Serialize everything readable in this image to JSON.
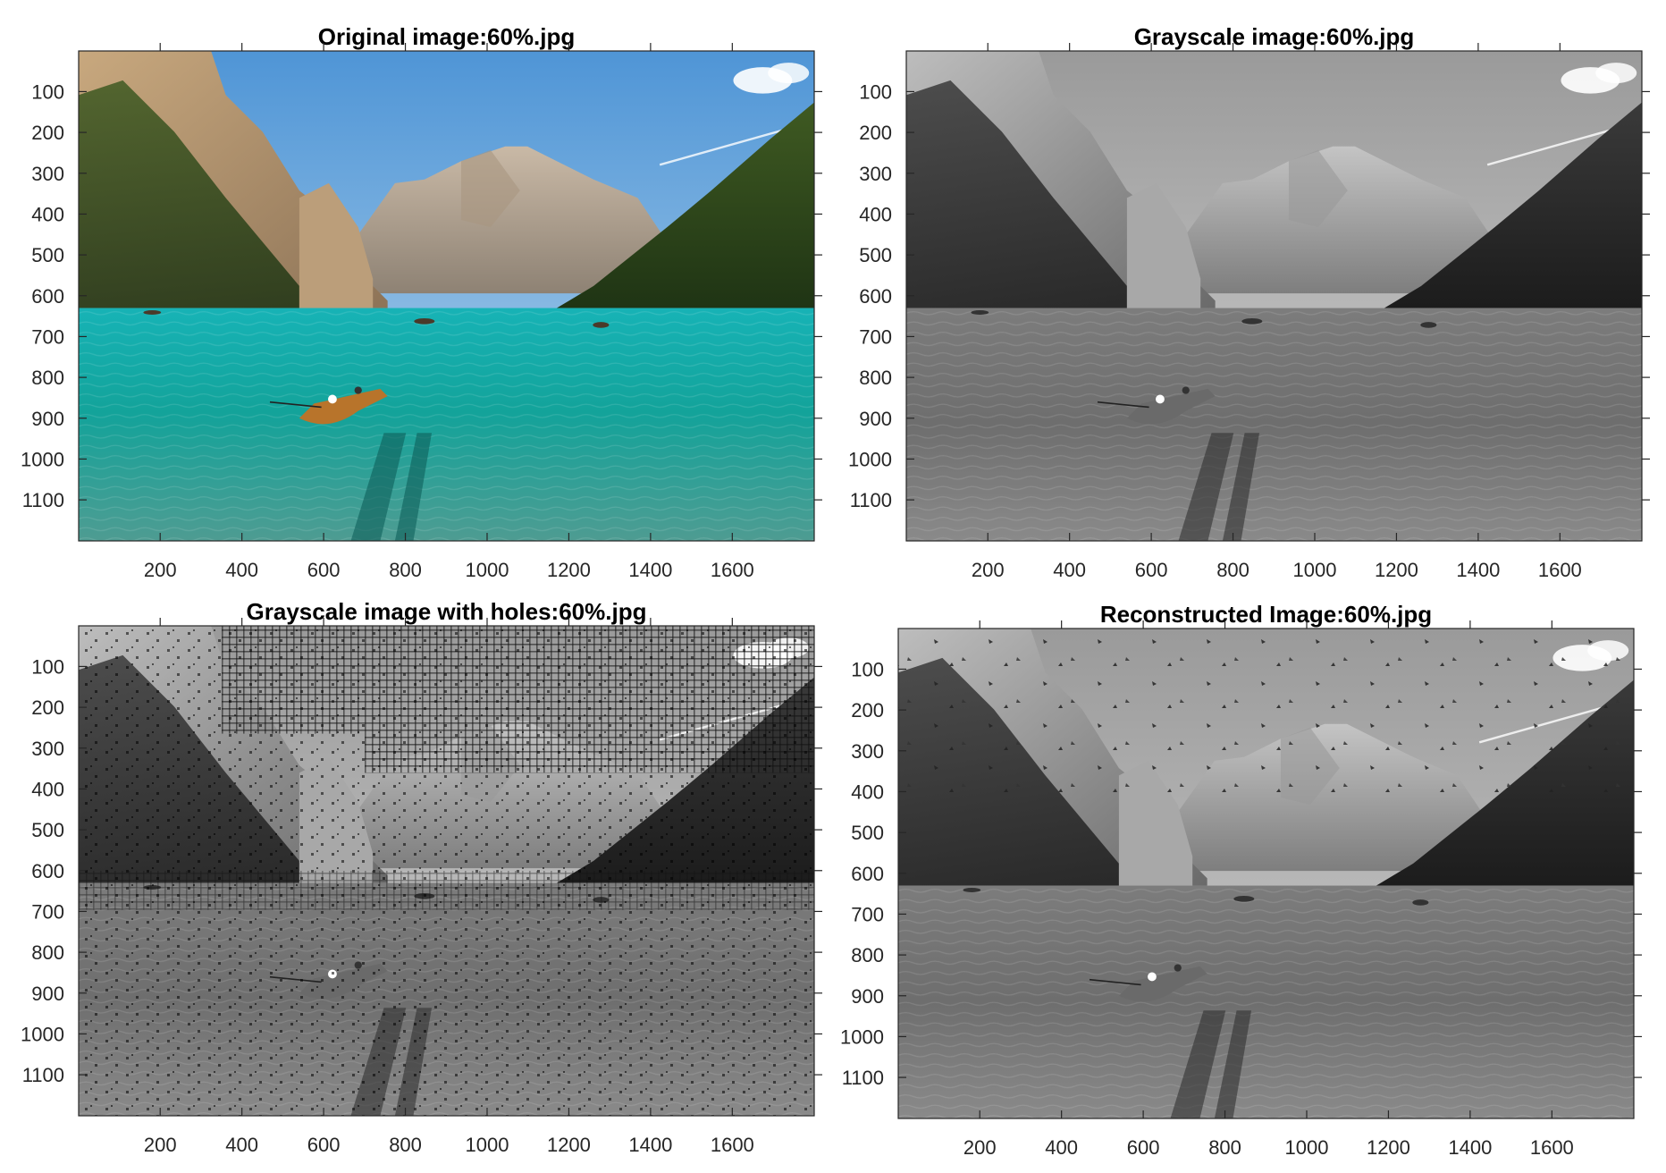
{
  "figure": {
    "panels": [
      {
        "id": "original",
        "title": "Original image:60%.jpg",
        "image_kind": "color",
        "xticks": [
          200,
          400,
          600,
          800,
          1000,
          1200,
          1400,
          1600
        ],
        "yticks": [
          100,
          200,
          300,
          400,
          500,
          600,
          700,
          800,
          900,
          1000,
          1100
        ],
        "xlim": [
          0.5,
          1800.5
        ],
        "ylim": [
          0.5,
          1200.5
        ]
      },
      {
        "id": "grayscale",
        "title": "Grayscale image:60%.jpg",
        "image_kind": "grayscale",
        "xticks": [
          200,
          400,
          600,
          800,
          1000,
          1200,
          1400,
          1600
        ],
        "yticks": [
          100,
          200,
          300,
          400,
          500,
          600,
          700,
          800,
          900,
          1000,
          1100
        ],
        "xlim": [
          0.5,
          1800.5
        ],
        "ylim": [
          0.5,
          1200.5
        ]
      },
      {
        "id": "holes",
        "title": "Grayscale image with holes:60%.jpg",
        "image_kind": "grayscale-with-holes",
        "xticks": [
          200,
          400,
          600,
          800,
          1000,
          1200,
          1400,
          1600
        ],
        "yticks": [
          100,
          200,
          300,
          400,
          500,
          600,
          700,
          800,
          900,
          1000,
          1100
        ],
        "xlim": [
          0.5,
          1800.5
        ],
        "ylim": [
          0.5,
          1200.5
        ]
      },
      {
        "id": "reconstructed",
        "title": "Reconstructed Image:60%.jpg",
        "image_kind": "grayscale-reconstructed",
        "xticks": [
          200,
          400,
          600,
          800,
          1000,
          1200,
          1400,
          1600
        ],
        "yticks": [
          100,
          200,
          300,
          400,
          500,
          600,
          700,
          800,
          900,
          1000,
          1100
        ],
        "xlim": [
          0.5,
          1800.5
        ],
        "ylim": [
          0.5,
          1200.5
        ]
      }
    ]
  }
}
